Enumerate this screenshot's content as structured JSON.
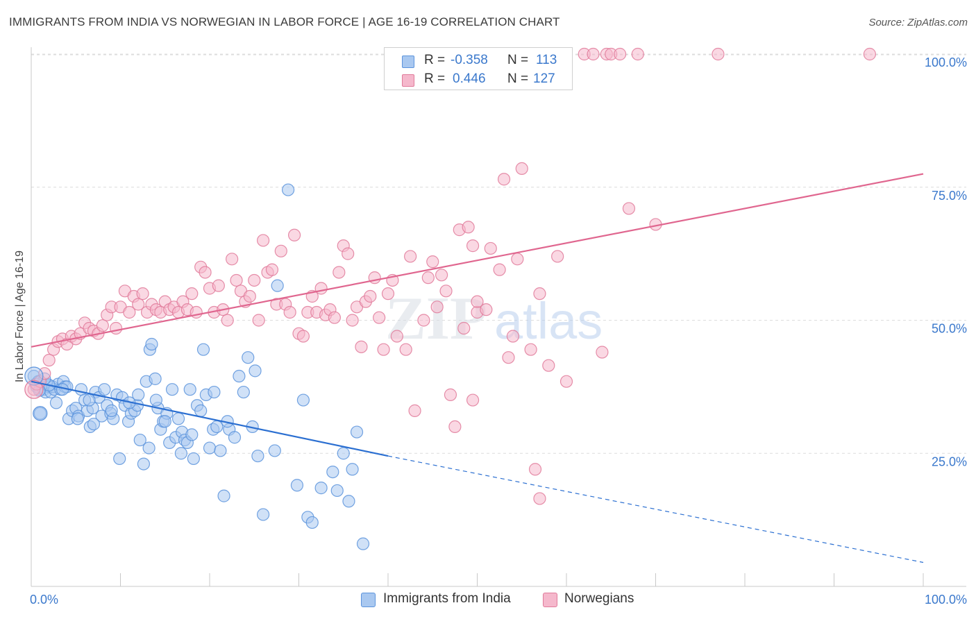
{
  "title": "IMMIGRANTS FROM INDIA VS NORWEGIAN IN LABOR FORCE | AGE 16-19 CORRELATION CHART",
  "source": "Source: ZipAtlas.com",
  "watermark": "ZIPatlas",
  "legend_box": {
    "rows": [
      {
        "r_label": "R =",
        "r_value": "-0.358",
        "n_label": "N =",
        "n_value": "113",
        "color": "#a9c8f0",
        "border": "#5b93dc"
      },
      {
        "r_label": "R =",
        "r_value": "0.446",
        "n_label": "N =",
        "n_value": "127",
        "color": "#f5b8cc",
        "border": "#e07a9a"
      }
    ]
  },
  "bottom_legend": {
    "india": "Immigrants from India",
    "norwegians": "Norwegians"
  },
  "chart_data": {
    "type": "scatter",
    "title": "IMMIGRANTS FROM INDIA VS NORWEGIAN IN LABOR FORCE | AGE 16-19 CORRELATION CHART",
    "xlabel": "",
    "ylabel": "In Labor Force | Age 16-19",
    "xlim": [
      0,
      100
    ],
    "ylim": [
      0,
      100
    ],
    "x_tick_labels": [
      "0.0%",
      "100.0%"
    ],
    "y_tick_labels": [
      "25.0%",
      "50.0%",
      "75.0%",
      "100.0%"
    ],
    "y_ticks": [
      25,
      50,
      75,
      100
    ],
    "grid": "horizontal dashed",
    "legend_position": "bottom",
    "series": [
      {
        "name": "Immigrants from India",
        "color": "#5b93dc",
        "fill": "#a9c8f0",
        "line_color": "#2b6fd1",
        "r": -0.358,
        "n": 113,
        "trend": {
          "x0": 0,
          "y0": 38.5,
          "x1": 40,
          "y1": 24.5,
          "dash_x1": 100,
          "dash_y1": 4.5
        },
        "points": [
          [
            0.3,
            39.5
          ],
          [
            0.5,
            38
          ],
          [
            0.6,
            37.5
          ],
          [
            0.8,
            38.5
          ],
          [
            1.0,
            37
          ],
          [
            1.2,
            37.5
          ],
          [
            1.4,
            37
          ],
          [
            1.6,
            36.5
          ],
          [
            1.8,
            38
          ],
          [
            2.0,
            37.5
          ],
          [
            2.2,
            36.5
          ],
          [
            2.4,
            37.5
          ],
          [
            2.6,
            37
          ],
          [
            2.8,
            34.5
          ],
          [
            3.0,
            38
          ],
          [
            3.3,
            37
          ],
          [
            3.6,
            38.5
          ],
          [
            3.8,
            37.5
          ],
          [
            4.2,
            31.5
          ],
          [
            4.6,
            33
          ],
          [
            5.0,
            33.5
          ],
          [
            5.3,
            32
          ],
          [
            5.6,
            37
          ],
          [
            6.0,
            35
          ],
          [
            6.3,
            33
          ],
          [
            6.6,
            30
          ],
          [
            6.9,
            33.5
          ],
          [
            7.2,
            36.5
          ],
          [
            7.6,
            35.5
          ],
          [
            7.9,
            32
          ],
          [
            8.2,
            37
          ],
          [
            8.5,
            34
          ],
          [
            8.9,
            32.5
          ],
          [
            9.2,
            31.5
          ],
          [
            9.6,
            36
          ],
          [
            9.9,
            24
          ],
          [
            10.2,
            35.5
          ],
          [
            10.5,
            34
          ],
          [
            10.9,
            31
          ],
          [
            11.2,
            32.5
          ],
          [
            11.6,
            33
          ],
          [
            11.9,
            34
          ],
          [
            12.2,
            27.5
          ],
          [
            12.6,
            23
          ],
          [
            12.9,
            38.5
          ],
          [
            13.2,
            26
          ],
          [
            13.3,
            44.5
          ],
          [
            13.5,
            45.5
          ],
          [
            13.9,
            39
          ],
          [
            14.2,
            33.5
          ],
          [
            14.5,
            29.5
          ],
          [
            14.8,
            31
          ],
          [
            15.2,
            32.5
          ],
          [
            15.5,
            27
          ],
          [
            15.8,
            37
          ],
          [
            16.2,
            28
          ],
          [
            16.5,
            31.5
          ],
          [
            16.9,
            29
          ],
          [
            17.2,
            27.5
          ],
          [
            17.5,
            27
          ],
          [
            17.8,
            37
          ],
          [
            18.2,
            24
          ],
          [
            18.6,
            34
          ],
          [
            19.0,
            33
          ],
          [
            19.3,
            44.5
          ],
          [
            19.6,
            36
          ],
          [
            20.0,
            26
          ],
          [
            20.4,
            29.5
          ],
          [
            20.8,
            30
          ],
          [
            21.2,
            25.5
          ],
          [
            21.6,
            17
          ],
          [
            22.2,
            29.5
          ],
          [
            22.8,
            28
          ],
          [
            23.3,
            39.5
          ],
          [
            23.8,
            36.5
          ],
          [
            24.3,
            43
          ],
          [
            24.8,
            30
          ],
          [
            25.1,
            40.5
          ],
          [
            25.4,
            24.5
          ],
          [
            27.3,
            25.5
          ],
          [
            27.6,
            56.5
          ],
          [
            28.8,
            74.5
          ],
          [
            29.8,
            19
          ],
          [
            30.5,
            35
          ],
          [
            31.0,
            13
          ],
          [
            31.5,
            12
          ],
          [
            32.5,
            18.5
          ],
          [
            33.8,
            21.5
          ],
          [
            34.3,
            18
          ],
          [
            35.0,
            25
          ],
          [
            35.6,
            16
          ],
          [
            36.0,
            22
          ],
          [
            36.5,
            29
          ],
          [
            37.2,
            8
          ],
          [
            1.0,
            32.5
          ],
          [
            4.0,
            37.5
          ],
          [
            5.2,
            31.5
          ],
          [
            12.0,
            36
          ],
          [
            15.0,
            31
          ],
          [
            16.8,
            25
          ],
          [
            20.5,
            36.5
          ],
          [
            26.0,
            13.5
          ],
          [
            22.0,
            31
          ],
          [
            18.0,
            28.5
          ],
          [
            14.0,
            35
          ],
          [
            11.0,
            34.5
          ],
          [
            9.0,
            33
          ],
          [
            7.0,
            30.5
          ],
          [
            6.5,
            35
          ],
          [
            3.5,
            37
          ],
          [
            2.0,
            37.8
          ],
          [
            1.5,
            39
          ],
          [
            0.9,
            36.8
          ]
        ]
      },
      {
        "name": "Norwegians",
        "color": "#e07a9a",
        "fill": "#f5b8cc",
        "line_color": "#e0668f",
        "r": 0.446,
        "n": 127,
        "trend": {
          "x0": 0,
          "y0": 45,
          "x1": 100,
          "y1": 77.5
        },
        "points": [
          [
            0.3,
            37
          ],
          [
            0.6,
            38
          ],
          [
            1.0,
            38.5
          ],
          [
            1.5,
            40
          ],
          [
            2.0,
            42.5
          ],
          [
            2.5,
            44.5
          ],
          [
            3.0,
            46
          ],
          [
            3.5,
            46.5
          ],
          [
            4.0,
            45.5
          ],
          [
            4.5,
            47
          ],
          [
            5.0,
            46.5
          ],
          [
            5.5,
            47.5
          ],
          [
            6.0,
            49.5
          ],
          [
            6.5,
            48.5
          ],
          [
            7.0,
            48
          ],
          [
            7.5,
            47.5
          ],
          [
            8.0,
            49
          ],
          [
            8.5,
            51
          ],
          [
            9.0,
            52.5
          ],
          [
            9.5,
            48.5
          ],
          [
            10.0,
            52.5
          ],
          [
            10.5,
            55.5
          ],
          [
            11.0,
            51.5
          ],
          [
            11.5,
            54.5
          ],
          [
            12.0,
            53
          ],
          [
            12.5,
            55
          ],
          [
            13.0,
            51.5
          ],
          [
            13.5,
            53
          ],
          [
            14.0,
            52
          ],
          [
            14.5,
            51.5
          ],
          [
            15.0,
            53.5
          ],
          [
            15.5,
            52
          ],
          [
            16.0,
            52.5
          ],
          [
            16.5,
            51.5
          ],
          [
            17.0,
            53.5
          ],
          [
            17.5,
            52
          ],
          [
            18.0,
            55
          ],
          [
            18.5,
            51.5
          ],
          [
            19.0,
            60
          ],
          [
            19.5,
            59
          ],
          [
            20.0,
            56
          ],
          [
            20.5,
            51.5
          ],
          [
            21.0,
            56.5
          ],
          [
            21.5,
            52
          ],
          [
            22.0,
            50
          ],
          [
            22.5,
            61.5
          ],
          [
            23.0,
            57.5
          ],
          [
            23.5,
            55.5
          ],
          [
            24.0,
            53.5
          ],
          [
            24.5,
            54.5
          ],
          [
            25.0,
            57.5
          ],
          [
            25.5,
            50
          ],
          [
            26.0,
            65
          ],
          [
            26.5,
            59
          ],
          [
            27.0,
            59.5
          ],
          [
            27.5,
            53
          ],
          [
            28.0,
            63
          ],
          [
            28.5,
            53
          ],
          [
            29.0,
            51.5
          ],
          [
            29.5,
            66
          ],
          [
            30.0,
            47.5
          ],
          [
            30.5,
            47
          ],
          [
            31.0,
            51.5
          ],
          [
            31.5,
            54.5
          ],
          [
            32.0,
            51.5
          ],
          [
            32.5,
            56
          ],
          [
            33.0,
            51
          ],
          [
            33.5,
            52
          ],
          [
            34.0,
            50.5
          ],
          [
            34.5,
            59
          ],
          [
            35.0,
            64
          ],
          [
            35.5,
            62.5
          ],
          [
            36.0,
            50
          ],
          [
            36.5,
            52.5
          ],
          [
            37.0,
            45
          ],
          [
            37.5,
            53.5
          ],
          [
            38.0,
            54.5
          ],
          [
            38.5,
            58
          ],
          [
            39.0,
            50.5
          ],
          [
            39.5,
            44.5
          ],
          [
            40.0,
            55
          ],
          [
            40.5,
            57.5
          ],
          [
            41.0,
            47
          ],
          [
            42.0,
            44.5
          ],
          [
            42.5,
            62
          ],
          [
            43.0,
            33
          ],
          [
            44.0,
            50
          ],
          [
            44.5,
            58
          ],
          [
            45.0,
            61
          ],
          [
            45.5,
            52.5
          ],
          [
            46.0,
            58.5
          ],
          [
            46.5,
            55.5
          ],
          [
            47.0,
            36
          ],
          [
            47.5,
            30
          ],
          [
            48.0,
            67
          ],
          [
            48.5,
            48.5
          ],
          [
            49.0,
            67.5
          ],
          [
            49.5,
            64
          ],
          [
            50.0,
            51.5
          ],
          [
            51.0,
            52
          ],
          [
            51.5,
            63.5
          ],
          [
            52.5,
            59.5
          ],
          [
            53.0,
            76.5
          ],
          [
            53.5,
            43
          ],
          [
            54.0,
            47
          ],
          [
            54.5,
            61.5
          ],
          [
            55.0,
            78.5
          ],
          [
            56.0,
            44.5
          ],
          [
            57.0,
            55
          ],
          [
            58.0,
            41.5
          ],
          [
            59.0,
            62
          ],
          [
            60.0,
            38.5
          ],
          [
            62.0,
            100
          ],
          [
            63.0,
            100
          ],
          [
            64.5,
            100
          ],
          [
            65.0,
            100
          ],
          [
            66.0,
            100
          ],
          [
            67.0,
            71
          ],
          [
            68.0,
            100
          ],
          [
            70.0,
            68
          ],
          [
            77.0,
            100
          ],
          [
            94.0,
            100
          ],
          [
            49.5,
            35
          ],
          [
            56.5,
            22
          ],
          [
            57.0,
            16.5
          ],
          [
            50.0,
            53.5
          ],
          [
            64.0,
            44
          ]
        ]
      }
    ]
  }
}
